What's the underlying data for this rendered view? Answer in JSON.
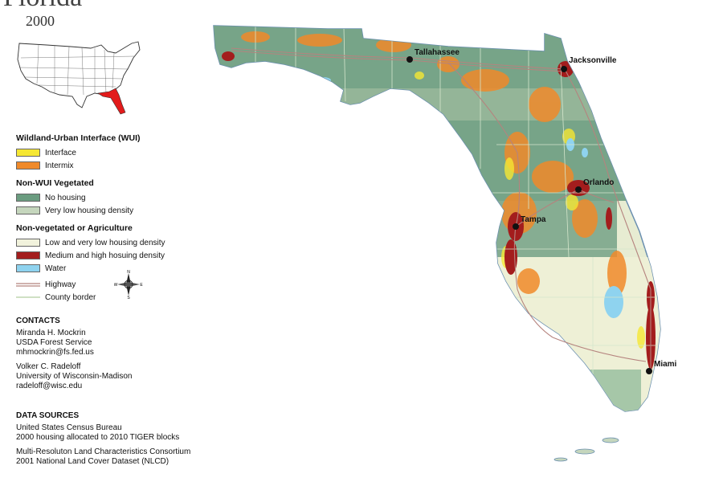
{
  "title": "Florida",
  "year": "2000",
  "legend": {
    "wui_heading": "Wildland-Urban Interface (WUI)",
    "wui_items": [
      {
        "label": "Interface",
        "color": "#f5e733"
      },
      {
        "label": "Intermix",
        "color": "#f08a2a"
      }
    ],
    "nonwui_heading": "Non-WUI Vegetated",
    "nonwui_items": [
      {
        "label": "No housing",
        "color": "#6b9c80"
      },
      {
        "label": "Very low housing density",
        "color": "#c5d6bd"
      }
    ],
    "nonveg_heading": "Non-vegetated or Agriculture",
    "nonveg_items": [
      {
        "label": "Low and very low housing density",
        "color": "#f1f2dc"
      },
      {
        "label": "Medium and high hosuing density",
        "color": "#a31d1d"
      },
      {
        "label": "Water",
        "color": "#8fd3ef"
      }
    ],
    "line_items": [
      {
        "label": "Highway",
        "color": "#b5837e"
      },
      {
        "label": "County border",
        "color": "#cfe0c4"
      }
    ]
  },
  "compass": {
    "n": "N",
    "s": "S",
    "e": "E",
    "w": "W"
  },
  "contacts": {
    "heading": "CONTACTS",
    "people": [
      {
        "name": "Miranda H. Mockrin",
        "org": "USDA Forest Service",
        "email": "mhmockrin@fs.fed.us"
      },
      {
        "name": "Volker C. Radeloff",
        "org": "University of Wisconsin-Madison",
        "email": "radeloff@wisc.edu"
      }
    ]
  },
  "data_sources": {
    "heading": "DATA SOURCES",
    "groups": [
      {
        "line1": "United States Census Bureau",
        "line2": "2000 housing allocated to 2010 TIGER blocks"
      },
      {
        "line1": "Multi-Resoluton Land Characteristics Consortium",
        "line2": "2001 National Land Cover Dataset (NLCD)"
      }
    ]
  },
  "cities": [
    "Tallahassee",
    "Jacksonville",
    "Orlando",
    "Tampa",
    "Miami"
  ]
}
